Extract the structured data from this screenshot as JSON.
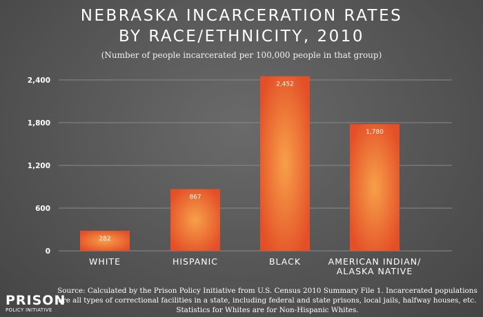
{
  "title_line1": "NEBRASKA INCARCERATION RATES",
  "title_line2": "BY RACE/ETHNICITY, 2010",
  "subtitle": "(Number of people incarcerated per 100,000 people in that group)",
  "source_lines": [
    "Source: Calculated by the Prison Policy Initiative from U.S. Census 2010 Summary File 1. Incarcerated populations",
    "are all types of correctional facilities in a state, including federal and state prisons, local jails, halfway houses, etc.",
    "Statistics for Whites are for Non-Hispanic Whites."
  ],
  "logo": {
    "main": "PRISON",
    "sub": "POLICY INITIATIVE"
  },
  "colors": {
    "bar_light": "#f7a04a",
    "bar_dark": "#e44f27",
    "grid": "#8a8a8a",
    "text": "#ffffff"
  },
  "chart_data": {
    "type": "bar",
    "categories": [
      [
        "WHITE"
      ],
      [
        "HISPANIC"
      ],
      [
        "BLACK"
      ],
      [
        "AMERICAN INDIAN/",
        "ALASKA NATIVE"
      ]
    ],
    "values": [
      282,
      867,
      2452,
      1780
    ],
    "data_labels": [
      "282",
      "867",
      "2,452",
      "1,780"
    ],
    "yticks": [
      0,
      600,
      1200,
      1800,
      2400
    ],
    "ytick_labels": [
      "0",
      "600",
      "1,200",
      "1,800",
      "2,400"
    ],
    "ylim": [
      0,
      2520
    ],
    "grid": true
  }
}
